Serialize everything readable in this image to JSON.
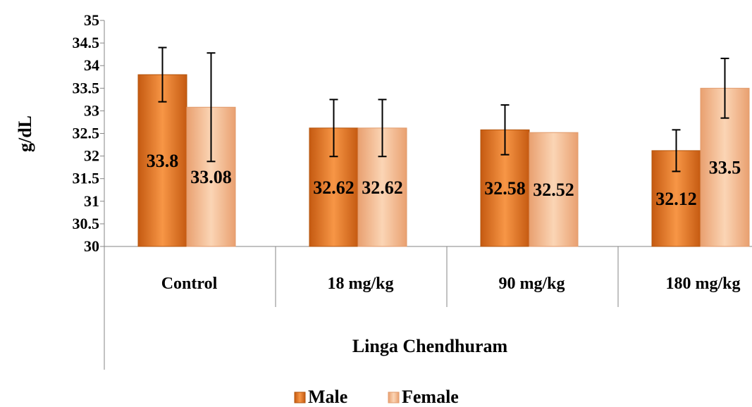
{
  "chart_data": {
    "type": "bar",
    "categories": [
      "Control",
      "18 mg/kg",
      "90 mg/kg",
      "180 mg/kg"
    ],
    "series": [
      {
        "name": "Male",
        "values": [
          33.8,
          32.62,
          32.58,
          32.12
        ],
        "labels": [
          "33.8",
          "32.62",
          "32.58",
          "32.12"
        ],
        "error": [
          0.6,
          0.63,
          0.55,
          0.46
        ],
        "color": "#E46C0A",
        "color_light": "#F79646"
      },
      {
        "name": "Female",
        "values": [
          33.08,
          32.62,
          32.52,
          33.5
        ],
        "labels": [
          "33.08",
          "32.62",
          "32.52",
          "33.5"
        ],
        "error": [
          1.2,
          0.63,
          null,
          0.66
        ],
        "color": "#F2A77A",
        "color_light": "#FBD5B5"
      }
    ],
    "xlabel": "Linga Chendhuram",
    "ylabel": "g/dL",
    "ylim": [
      30,
      35
    ],
    "yticks": [
      "30",
      "30.5",
      "31",
      "31.5",
      "32",
      "32.5",
      "33",
      "33.5",
      "34",
      "34.5",
      "35"
    ],
    "grid": false,
    "legend": "bottom"
  }
}
